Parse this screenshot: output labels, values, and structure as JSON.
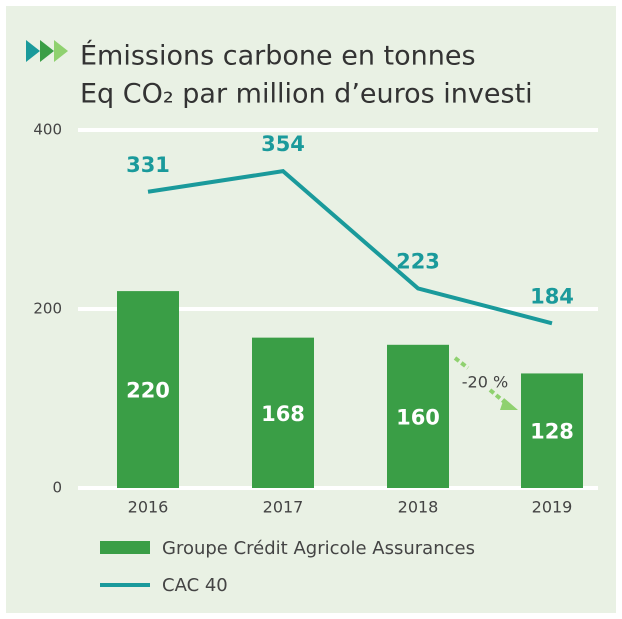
{
  "chart_data": {
    "type": "bar_line",
    "title": [
      "Émissions carbone en tonnes",
      "Eq CO₂ par million d’euros investi"
    ],
    "categories": [
      "2016",
      "2017",
      "2018",
      "2019"
    ],
    "series": [
      {
        "name": "Groupe Crédit Agricole Assurances",
        "type": "bar",
        "color": "#3a9e46",
        "values": [
          220,
          168,
          160,
          128
        ]
      },
      {
        "name": "CAC 40",
        "type": "line",
        "color": "#1a9a9b",
        "values": [
          331,
          354,
          223,
          184
        ]
      }
    ],
    "ylim": [
      0,
      400
    ],
    "yticks": [
      0,
      200,
      400
    ],
    "grid": true,
    "annotation": "-20 %"
  }
}
